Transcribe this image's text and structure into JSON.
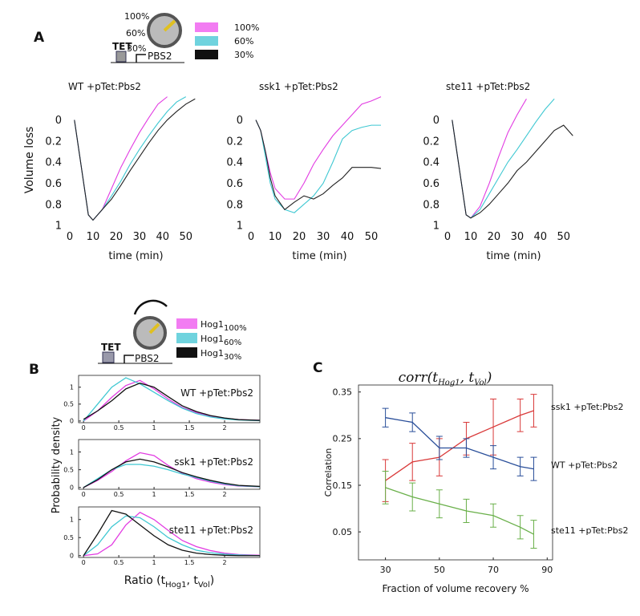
{
  "labels": {
    "panels": [
      "A",
      "B",
      "C"
    ],
    "diagram_a": {
      "dial": [
        "100%",
        "60%",
        "30%"
      ],
      "promoter": "TET",
      "gene": "PBS2"
    },
    "legend_a": [
      {
        "label": "100%",
        "color": "#f27cf2"
      },
      {
        "label": "60%",
        "color": "#6fd3de"
      },
      {
        "label": "30%",
        "color": "#111111"
      }
    ],
    "diagram_b": {
      "promoter": "TET",
      "gene": "PBS2"
    },
    "legend_b": [
      {
        "name": "Hog1",
        "sub": "100%",
        "color": "#f27cf2"
      },
      {
        "name": "Hog1",
        "sub": "60%",
        "color": "#6fd3de"
      },
      {
        "name": "Hog1",
        "sub": "30%",
        "color": "#111111"
      }
    ],
    "ylabel_b": "Probability density"
  },
  "chart_data": [
    {
      "type": "line",
      "title": "WT +pTet:Pbs2",
      "title_color": "#111111",
      "ylabel": "Volume loss",
      "xlabel": "time (min)",
      "invert_y": true,
      "frame": false,
      "xlim": [
        0,
        57
      ],
      "ylim": [
        -0.24,
        1
      ],
      "xticks": [
        0,
        10,
        20,
        30,
        40,
        50
      ],
      "yticks": [
        0,
        0.2,
        0.4,
        0.6,
        0.8,
        1
      ],
      "x": [
        2,
        4,
        6,
        8,
        10,
        14,
        18,
        22,
        26,
        30,
        34,
        38,
        42,
        46,
        50,
        54
      ],
      "series": [
        {
          "color": "#e23be2",
          "values": [
            0,
            0.3,
            0.6,
            0.9,
            0.95,
            0.85,
            0.65,
            0.45,
            0.28,
            0.12,
            -0.02,
            -0.15,
            -0.22,
            null,
            null,
            null
          ]
        },
        {
          "color": "#3fc8d2",
          "values": [
            0,
            0.3,
            0.6,
            0.9,
            0.95,
            0.85,
            0.72,
            0.58,
            0.42,
            0.28,
            0.15,
            0.03,
            -0.08,
            -0.17,
            -0.22,
            null
          ]
        },
        {
          "color": "#222222",
          "values": [
            0,
            0.3,
            0.6,
            0.9,
            0.95,
            0.85,
            0.75,
            0.62,
            0.48,
            0.35,
            0.22,
            0.1,
            0,
            -0.08,
            -0.15,
            -0.2
          ]
        }
      ]
    },
    {
      "type": "line",
      "title": "ssk1 +pTet:Pbs2",
      "title_color": "#e8306e",
      "xlabel": "time (min)",
      "invert_y": true,
      "frame": false,
      "xlim": [
        0,
        57
      ],
      "ylim": [
        -0.24,
        1
      ],
      "xticks": [
        0,
        10,
        20,
        30,
        40,
        50
      ],
      "yticks": [
        0,
        0.2,
        0.4,
        0.6,
        0.8,
        1
      ],
      "x": [
        2,
        4,
        6,
        8,
        10,
        14,
        18,
        22,
        26,
        30,
        34,
        38,
        42,
        46,
        50,
        54
      ],
      "series": [
        {
          "color": "#e23be2",
          "values": [
            0,
            0.1,
            0.3,
            0.5,
            0.65,
            0.75,
            0.75,
            0.6,
            0.42,
            0.28,
            0.15,
            0.05,
            -0.05,
            -0.15,
            -0.18,
            -0.22
          ]
        },
        {
          "color": "#3fc8d2",
          "values": [
            0,
            0.1,
            0.35,
            0.6,
            0.75,
            0.85,
            0.88,
            0.8,
            0.72,
            0.6,
            0.4,
            0.18,
            0.1,
            0.07,
            0.05,
            0.05
          ]
        },
        {
          "color": "#222222",
          "values": [
            0,
            0.1,
            0.3,
            0.55,
            0.72,
            0.85,
            0.78,
            0.72,
            0.75,
            0.7,
            0.62,
            0.55,
            0.45,
            0.45,
            0.45,
            0.46
          ]
        }
      ]
    },
    {
      "type": "line",
      "title": "ste11 +pTet:Pbs2",
      "title_color": "#22cc22",
      "xlabel": "time (min)",
      "invert_y": true,
      "frame": false,
      "xlim": [
        0,
        57
      ],
      "ylim": [
        -0.24,
        1
      ],
      "xticks": [
        0,
        10,
        20,
        30,
        40,
        50
      ],
      "yticks": [
        0,
        0.2,
        0.4,
        0.6,
        0.8,
        1
      ],
      "x": [
        2,
        4,
        6,
        8,
        10,
        14,
        18,
        22,
        26,
        30,
        34,
        38,
        42,
        46,
        50,
        54
      ],
      "series": [
        {
          "color": "#e23be2",
          "values": [
            0,
            0.3,
            0.6,
            0.9,
            0.93,
            0.82,
            0.6,
            0.35,
            0.12,
            -0.05,
            -0.2,
            null,
            null,
            null,
            null,
            null
          ]
        },
        {
          "color": "#3fc8d2",
          "values": [
            0,
            0.3,
            0.6,
            0.9,
            0.93,
            0.85,
            0.7,
            0.55,
            0.4,
            0.28,
            0.15,
            0.02,
            -0.1,
            -0.2,
            null,
            null
          ]
        },
        {
          "color": "#222222",
          "values": [
            0,
            0.3,
            0.6,
            0.9,
            0.93,
            0.88,
            0.8,
            0.7,
            0.6,
            0.48,
            0.4,
            0.3,
            0.2,
            0.1,
            0.05,
            0.15
          ]
        }
      ]
    },
    {
      "type": "line",
      "title": "WT +pTet:Pbs2",
      "title_color": "#111111",
      "frame": true,
      "xlim": [
        -0.07,
        2.5
      ],
      "ylim": [
        -0.05,
        1.35
      ],
      "xticks": [
        0,
        0.5,
        1,
        1.5,
        2
      ],
      "yticks": [
        0,
        0.5,
        1
      ],
      "x": [
        0,
        0.2,
        0.4,
        0.6,
        0.8,
        1,
        1.2,
        1.4,
        1.6,
        1.8,
        2,
        2.2,
        2.5
      ],
      "series": [
        {
          "color": "#e23be2",
          "values": [
            0,
            0.3,
            0.7,
            1.05,
            1.2,
            0.95,
            0.65,
            0.4,
            0.25,
            0.15,
            0.08,
            0.04,
            0.02
          ]
        },
        {
          "color": "#3fc8d2",
          "values": [
            0,
            0.5,
            1,
            1.28,
            1.1,
            0.85,
            0.6,
            0.38,
            0.22,
            0.12,
            0.06,
            0.03,
            0.01
          ]
        },
        {
          "color": "#111111",
          "values": [
            0.05,
            0.3,
            0.6,
            0.95,
            1.12,
            1,
            0.72,
            0.45,
            0.28,
            0.16,
            0.09,
            0.04,
            0.02
          ]
        }
      ]
    },
    {
      "type": "line",
      "title": "ssk1 +pTet:Pbs2",
      "title_color": "#e8306e",
      "frame": true,
      "xlim": [
        -0.07,
        2.5
      ],
      "ylim": [
        -0.05,
        1.35
      ],
      "xticks": [
        0,
        0.5,
        1,
        1.5,
        2
      ],
      "yticks": [
        0,
        0.5,
        1
      ],
      "x": [
        0,
        0.2,
        0.4,
        0.6,
        0.8,
        1,
        1.2,
        1.4,
        1.6,
        1.8,
        2,
        2.2,
        2.5
      ],
      "series": [
        {
          "color": "#e23be2",
          "values": [
            0,
            0.2,
            0.45,
            0.75,
            0.98,
            0.9,
            0.62,
            0.4,
            0.25,
            0.15,
            0.08,
            0.04,
            0.02
          ]
        },
        {
          "color": "#3fc8d2",
          "values": [
            0,
            0.25,
            0.5,
            0.65,
            0.65,
            0.6,
            0.5,
            0.38,
            0.28,
            0.18,
            0.1,
            0.05,
            0.02
          ]
        },
        {
          "color": "#111111",
          "values": [
            0,
            0.22,
            0.5,
            0.72,
            0.8,
            0.72,
            0.58,
            0.42,
            0.3,
            0.2,
            0.12,
            0.06,
            0.03
          ]
        }
      ]
    },
    {
      "type": "line",
      "title": "ste11 +pTet:Pbs2",
      "title_color": "#22cc22",
      "xlabel_parts": [
        "Ratio (t",
        "Hog1",
        ", t",
        "Vol",
        ")"
      ],
      "frame": true,
      "xlim": [
        -0.07,
        2.5
      ],
      "ylim": [
        -0.05,
        1.35
      ],
      "xticks": [
        0,
        0.5,
        1,
        1.5,
        2
      ],
      "yticks": [
        0,
        0.5,
        1
      ],
      "x": [
        0,
        0.2,
        0.4,
        0.6,
        0.8,
        1,
        1.2,
        1.4,
        1.6,
        1.8,
        2,
        2.2,
        2.5
      ],
      "series": [
        {
          "color": "#e23be2",
          "values": [
            0,
            0.05,
            0.3,
            0.85,
            1.2,
            1,
            0.7,
            0.42,
            0.25,
            0.14,
            0.07,
            0.03,
            0.01
          ]
        },
        {
          "color": "#3fc8d2",
          "values": [
            0,
            0.3,
            0.8,
            1.1,
            1.05,
            0.8,
            0.5,
            0.3,
            0.15,
            0.08,
            0.04,
            0.02,
            0
          ]
        },
        {
          "color": "#111111",
          "values": [
            0,
            0.6,
            1.25,
            1.15,
            0.85,
            0.55,
            0.3,
            0.15,
            0.07,
            0.03,
            0.01,
            0,
            0
          ]
        }
      ]
    },
    {
      "type": "line",
      "title_parts": [
        "corr(t",
        "Hog1",
        ", t",
        "Vol",
        ")"
      ],
      "ylabel": "Correlation",
      "xlabel": "Fraction of volume recovery %",
      "frame": true,
      "xlim": [
        20,
        92
      ],
      "ylim": [
        -0.01,
        0.365
      ],
      "xticks": [
        30,
        50,
        70,
        90
      ],
      "yticks": [
        0.05,
        0.15,
        0.25,
        0.35
      ],
      "x": [
        30,
        40,
        50,
        60,
        70,
        80,
        85
      ],
      "series": [
        {
          "name": "ssk1 +pTet:Pbs2",
          "color": "#d93a3a",
          "label_color": "#e8306e",
          "values": [
            0.16,
            0.2,
            0.21,
            0.25,
            0.275,
            0.3,
            0.31
          ],
          "errors": [
            0.045,
            0.04,
            0.04,
            0.035,
            0.06,
            0.035,
            0.035
          ]
        },
        {
          "name": "WT +pTet:Pbs2",
          "color": "#2a4f9a",
          "label_color": "#111111",
          "values": [
            0.295,
            0.285,
            0.23,
            0.23,
            0.21,
            0.19,
            0.185
          ],
          "errors": [
            0.02,
            0.02,
            0.025,
            0.02,
            0.025,
            0.02,
            0.025
          ]
        },
        {
          "name": "ste11 +pTet:Pbs2",
          "color": "#6ab04a",
          "label_color": "#22cc22",
          "values": [
            0.145,
            0.125,
            0.11,
            0.095,
            0.085,
            0.06,
            0.045
          ],
          "errors": [
            0.035,
            0.03,
            0.03,
            0.025,
            0.025,
            0.025,
            0.03
          ]
        }
      ]
    }
  ]
}
